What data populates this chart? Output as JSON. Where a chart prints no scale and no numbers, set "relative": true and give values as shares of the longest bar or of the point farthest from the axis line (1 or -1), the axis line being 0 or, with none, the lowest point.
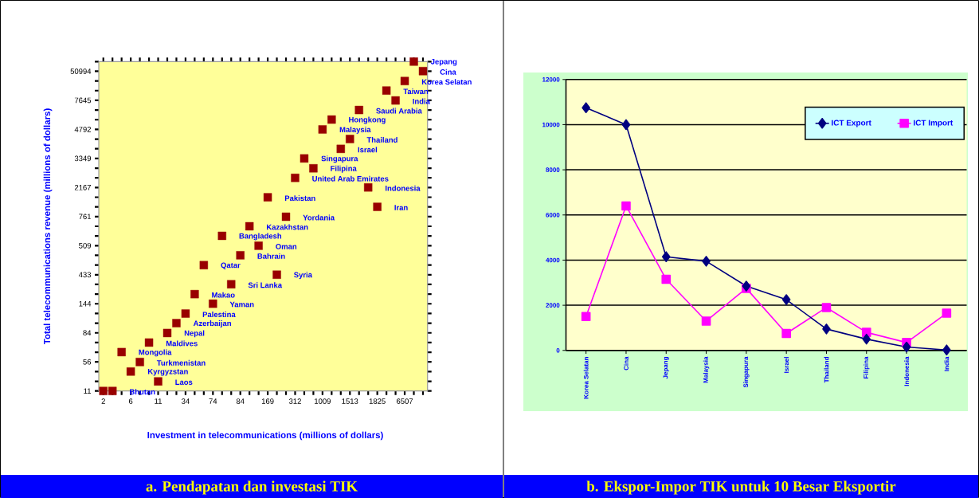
{
  "chart_data": [
    {
      "type": "scatter",
      "title": "a. Pendapatan dan investasi TIK",
      "xlabel": "Investment in telecommunications (millions of dollars)",
      "ylabel": "Total telecommunications revenue (millions of dollars)",
      "color": "#990000",
      "marker": "square",
      "categories": [
        "2",
        null,
        null,
        "6",
        null,
        null,
        "11",
        null,
        null,
        "34",
        null,
        null,
        "74",
        null,
        null,
        "84",
        null,
        null,
        "169",
        null,
        null,
        "312",
        null,
        null,
        "1009",
        null,
        null,
        "1513",
        null,
        null,
        "1825",
        null,
        null,
        "6507",
        null,
        null
      ],
      "y_categories": [
        null,
        "50994",
        null,
        null,
        "7645",
        null,
        null,
        "4792",
        null,
        null,
        "3349",
        null,
        null,
        "2167",
        null,
        null,
        "761",
        null,
        null,
        "509",
        null,
        null,
        "433",
        null,
        null,
        "144",
        null,
        null,
        "84",
        null,
        null,
        "56",
        null,
        null,
        "11"
      ],
      "relative": true,
      "values": [
        0,
        0,
        0.118,
        0.059,
        0.088,
        0.147,
        0.029,
        0.176,
        0.206,
        0.235,
        0.294,
        0.382,
        0.265,
        0.471,
        0.324,
        0.412,
        0.5,
        0.441,
        0.588,
        0.353,
        0.529,
        0.647,
        0.706,
        0.676,
        0.794,
        0.824,
        0.735,
        0.765,
        0.853,
        0.618,
        0.559,
        0.912,
        0.882,
        0.941,
        1,
        0.971
      ],
      "annotations": [
        {
          "text": "Bhutan"
        },
        {
          "text": "Mongolia"
        },
        {
          "text": "Kyrgyzstan"
        },
        {
          "text": "Turkmenistan"
        },
        {
          "text": "Maldives"
        },
        {
          "text": "Laos"
        },
        {
          "text": "Nepal"
        },
        {
          "text": "Azerbaijan"
        },
        {
          "text": "Palestina"
        },
        {
          "text": "Makao"
        },
        {
          "text": "Qatar"
        },
        {
          "text": "Yaman"
        },
        {
          "text": "Bangladesh"
        },
        {
          "text": "Sri Lanka"
        },
        {
          "text": "Bahrain"
        },
        {
          "text": "Kazakhstan"
        },
        {
          "text": "Oman"
        },
        {
          "text": "Pakistan"
        },
        {
          "text": "Syria"
        },
        {
          "text": "Yordania"
        },
        {
          "text": "United Arab Emirates"
        },
        {
          "text": "Singapura"
        },
        {
          "text": "Filipina"
        },
        {
          "text": "Malaysia"
        },
        {
          "text": "Hongkong"
        },
        {
          "text": "Israel"
        },
        {
          "text": "Thailand"
        },
        {
          "text": "Saudi Arabia"
        },
        {
          "text": "Indonesia"
        },
        {
          "text": "Iran"
        },
        {
          "text": "Taiwan"
        },
        {
          "text": "India"
        },
        {
          "text": "Korea Selatan"
        },
        {
          "text": "Jepang"
        },
        {
          "text": "Cina"
        }
      ]
    },
    {
      "type": "line",
      "title": "b. Ekspor-Impor TIK untuk 10 Besar Eksportir",
      "categories": [
        "Korea Selatan",
        "Cina",
        "Jepang",
        "Malaysia",
        "Singapura",
        "Israel",
        "Thailand",
        "Filipina",
        "Indonesia",
        "India"
      ],
      "series": [
        {
          "name": "ICT Export",
          "color": "#000080",
          "marker": "diamond",
          "values": [
            10750,
            10000,
            4150,
            3950,
            2850,
            2250,
            950,
            500,
            150,
            20
          ]
        },
        {
          "name": "ICT Import",
          "color": "#ff00ff",
          "marker": "square",
          "values": [
            1500,
            6400,
            3150,
            1300,
            2750,
            750,
            1900,
            800,
            350,
            1650
          ]
        }
      ],
      "ylim": [
        0,
        12000
      ],
      "yticks": [
        0,
        2000,
        4000,
        6000,
        8000,
        10000,
        12000
      ],
      "grid": "y",
      "legend": "top right"
    }
  ]
}
